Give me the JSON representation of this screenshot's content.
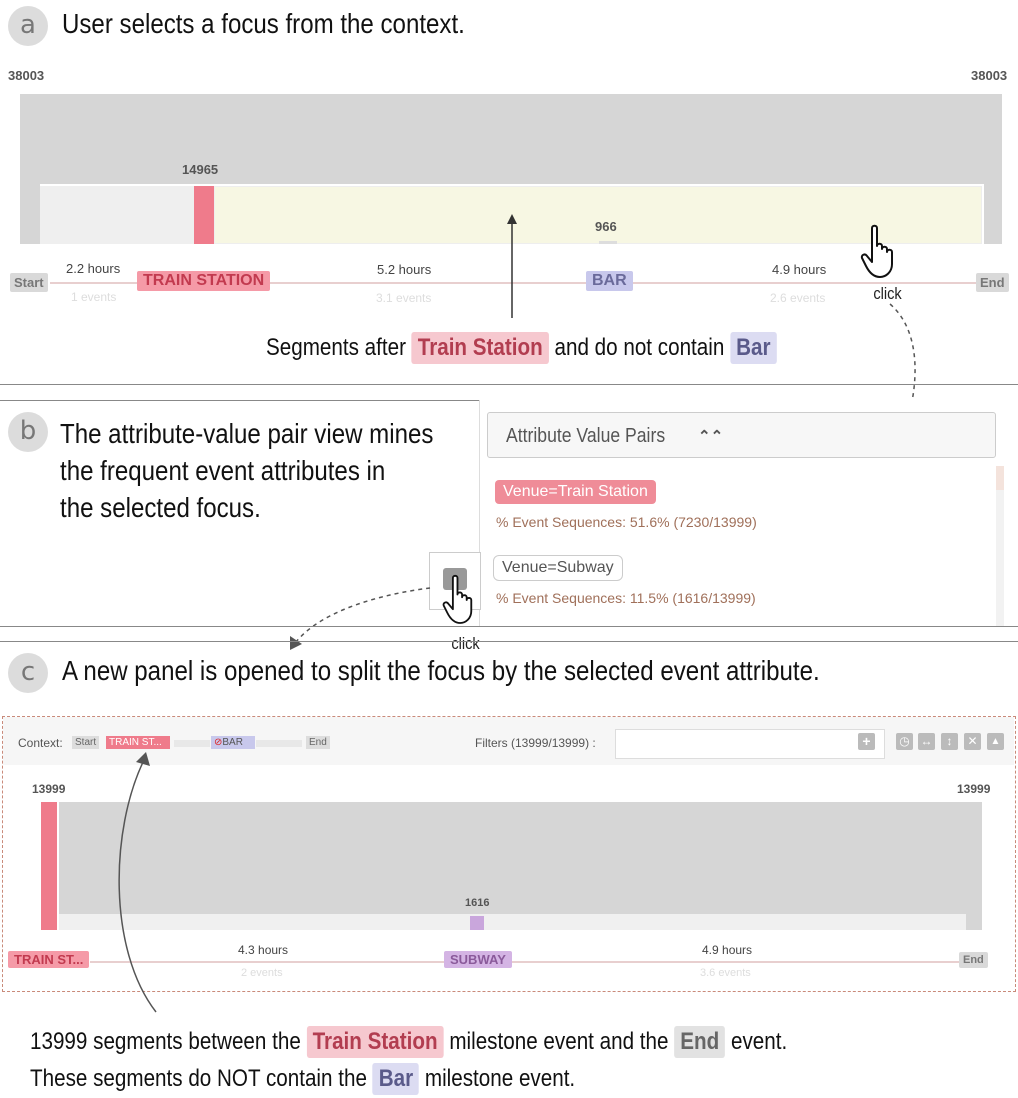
{
  "sectionA": {
    "letter": "a",
    "heading": "User selects a focus from the context.",
    "count_left": "38003",
    "count_right": "38003",
    "focus_count": "14965",
    "sub_count": "966",
    "start": "Start",
    "end": "End",
    "milestone1": "TRAIN STATION",
    "milestone2": "BAR",
    "gap1_hours": "2.2 hours",
    "gap1_events": "1 events",
    "gap2_hours": "5.2 hours",
    "gap2_events": "3.1 events",
    "gap3_hours": "4.9 hours",
    "gap3_events": "2.6 events",
    "click": "click",
    "caption_pre": "Segments after",
    "caption_tag1": "Train Station",
    "caption_mid": "and do not contain",
    "caption_tag2": "Bar"
  },
  "sectionB": {
    "letter": "b",
    "heading_line1": "The attribute-value pair view mines",
    "heading_line2": "the frequent event attributes in",
    "heading_line3": "the selected focus.",
    "panel_title": "Attribute Value Pairs",
    "collapse_icon": "double-chevron-up-icon",
    "pair1_label": "Venue=Train Station",
    "pair1_stat": "% Event Sequences: 51.6% (7230/13999)",
    "pair2_label": "Venue=Subway",
    "pair2_stat": "% Event Sequences: 11.5% (1616/13999)",
    "click": "click"
  },
  "sectionC": {
    "letter": "c",
    "heading": "A new panel is opened to split the focus by the selected event attribute.",
    "context_label": "Context:",
    "ctx_start": "Start",
    "ctx_train": "TRAIN ST...",
    "ctx_bar": "BAR",
    "ctx_end": "End",
    "filters_label": "Filters (13999/13999) :",
    "count_left": "13999",
    "count_right": "13999",
    "sub_count": "1616",
    "milestone_start": "TRAIN ST...",
    "milestone_mid": "SUBWAY",
    "end": "End",
    "gap1_hours": "4.3 hours",
    "gap1_events": "2 events",
    "gap2_hours": "4.9 hours",
    "gap2_events": "3.6 events",
    "caption1_pre": "13999 segments between the",
    "caption1_tag1": "Train Station",
    "caption1_mid": "milestone event and the",
    "caption1_tag2": "End",
    "caption1_post": "event.",
    "caption2_pre": "These segments do NOT contain the",
    "caption2_tag": "Bar",
    "caption2_post": "milestone event."
  },
  "colors": {
    "train": "#ef7b8b",
    "bar": "#b9b9e6",
    "subway": "#c9a6dc",
    "focus": "#f7f7e3"
  }
}
